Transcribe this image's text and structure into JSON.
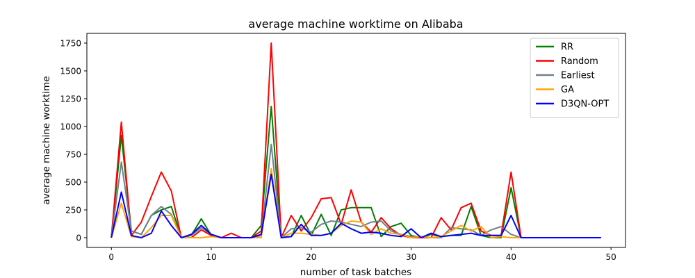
{
  "chart_data": {
    "type": "line",
    "title": "average machine worktime on Alibaba",
    "xlabel": "number of task batches",
    "ylabel": "average machine worktime",
    "xlim": [
      -2.45,
      51.45
    ],
    "ylim": [
      -87.5,
      1837.5
    ],
    "xticks": [
      0,
      10,
      20,
      30,
      40,
      50
    ],
    "yticks": [
      0,
      250,
      500,
      750,
      1000,
      1250,
      1500,
      1750
    ],
    "grid": false,
    "legend_position": "top-right",
    "x": [
      0,
      1,
      2,
      3,
      4,
      5,
      6,
      7,
      8,
      9,
      10,
      11,
      12,
      13,
      14,
      15,
      16,
      17,
      18,
      19,
      20,
      21,
      22,
      23,
      24,
      25,
      26,
      27,
      28,
      29,
      30,
      31,
      32,
      33,
      34,
      35,
      36,
      37,
      38,
      39,
      40,
      41,
      42,
      43,
      44,
      45,
      46,
      47,
      48,
      49
    ],
    "series": [
      {
        "name": "RR",
        "color": "#008000",
        "values": [
          0,
          920,
          60,
          30,
          200,
          250,
          280,
          0,
          20,
          170,
          20,
          0,
          0,
          0,
          0,
          110,
          1180,
          0,
          10,
          200,
          20,
          210,
          20,
          250,
          270,
          270,
          270,
          10,
          100,
          130,
          20,
          0,
          30,
          10,
          20,
          20,
          280,
          20,
          0,
          0,
          450,
          0,
          0,
          0,
          0,
          0,
          0,
          0,
          0,
          0
        ]
      },
      {
        "name": "Random",
        "color": "#ff0000",
        "values": [
          0,
          1040,
          20,
          140,
          370,
          590,
          420,
          0,
          0,
          70,
          20,
          0,
          40,
          0,
          0,
          60,
          1750,
          0,
          200,
          60,
          180,
          350,
          360,
          120,
          430,
          140,
          50,
          180,
          80,
          20,
          0,
          0,
          0,
          180,
          70,
          270,
          310,
          60,
          20,
          20,
          590,
          0,
          0,
          0,
          0,
          0,
          0,
          0,
          0,
          0
        ]
      },
      {
        "name": "Earliest",
        "color": "#708090",
        "values": [
          0,
          680,
          60,
          30,
          200,
          280,
          210,
          0,
          20,
          90,
          30,
          0,
          0,
          0,
          0,
          20,
          840,
          0,
          80,
          90,
          50,
          120,
          150,
          140,
          120,
          100,
          140,
          150,
          60,
          30,
          10,
          10,
          0,
          0,
          90,
          80,
          70,
          20,
          70,
          100,
          30,
          0,
          0,
          0,
          0,
          0,
          0,
          0,
          0,
          0
        ]
      },
      {
        "name": "GA",
        "color": "#ffa500",
        "values": [
          0,
          310,
          10,
          0,
          90,
          200,
          200,
          0,
          0,
          0,
          10,
          0,
          0,
          0,
          0,
          0,
          620,
          0,
          40,
          40,
          30,
          20,
          40,
          110,
          150,
          140,
          30,
          80,
          40,
          30,
          0,
          10,
          0,
          10,
          60,
          110,
          60,
          100,
          0,
          10,
          0,
          0,
          0,
          0,
          0,
          0,
          0,
          0,
          0,
          0
        ]
      },
      {
        "name": "D3QN-OPT",
        "color": "#0000ff",
        "values": [
          0,
          410,
          20,
          0,
          40,
          240,
          110,
          0,
          30,
          110,
          30,
          0,
          0,
          0,
          0,
          30,
          570,
          0,
          10,
          120,
          20,
          20,
          40,
          130,
          80,
          40,
          50,
          40,
          20,
          10,
          80,
          0,
          40,
          10,
          20,
          30,
          40,
          20,
          20,
          20,
          200,
          0,
          0,
          0,
          0,
          0,
          0,
          0,
          0,
          0
        ]
      }
    ]
  }
}
